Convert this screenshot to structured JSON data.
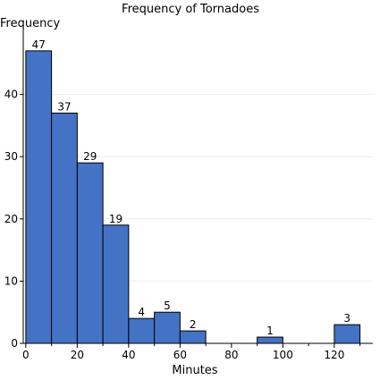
{
  "chart_data": {
    "type": "bar",
    "title": "Frequency of Tornadoes",
    "xlabel": "Minutes",
    "ylabel": "Frequency",
    "bin_width": 10,
    "bins": [
      {
        "start": 0,
        "value": 47
      },
      {
        "start": 10,
        "value": 37
      },
      {
        "start": 20,
        "value": 29
      },
      {
        "start": 30,
        "value": 19
      },
      {
        "start": 40,
        "value": 4
      },
      {
        "start": 50,
        "value": 5
      },
      {
        "start": 60,
        "value": 2
      },
      {
        "start": 90,
        "value": 1
      },
      {
        "start": 120,
        "value": 3
      }
    ],
    "xlim": [
      -1,
      135
    ],
    "ylim": [
      0,
      50
    ],
    "x_ticks": [
      0,
      20,
      40,
      60,
      80,
      100,
      120
    ],
    "y_ticks": [
      0,
      10,
      20,
      30,
      40
    ],
    "grid": true,
    "bar_color": "#4472c4"
  }
}
